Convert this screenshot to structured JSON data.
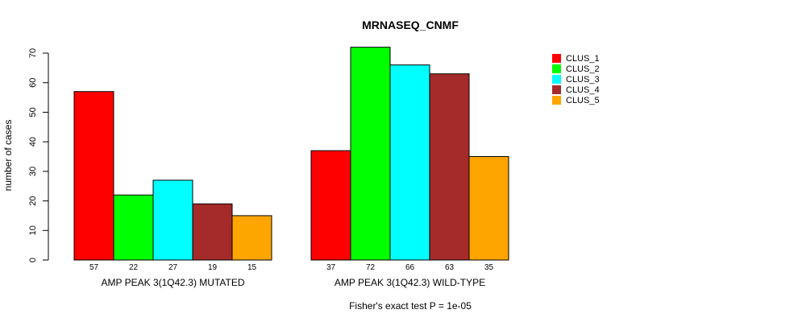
{
  "chart_data": {
    "type": "bar",
    "title": "MRNASEQ_CNMF",
    "ylabel": "number of cases",
    "ylim": [
      0,
      70
    ],
    "yticks": [
      0,
      10,
      20,
      30,
      40,
      50,
      60,
      70
    ],
    "groups": [
      {
        "label": "AMP PEAK  3(1Q42.3) MUTATED",
        "values": [
          57,
          22,
          27,
          19,
          15
        ],
        "value_labels": [
          "57",
          "22",
          "27",
          "19",
          "15"
        ]
      },
      {
        "label": "AMP PEAK  3(1Q42.3) WILD-TYPE",
        "values": [
          37,
          72,
          66,
          63,
          35
        ],
        "value_labels": [
          "37",
          "72",
          "66",
          "63",
          "35"
        ]
      }
    ],
    "series": [
      {
        "name": "CLUS_1",
        "color": "#ff0000"
      },
      {
        "name": "CLUS_2",
        "color": "#00ff00"
      },
      {
        "name": "CLUS_3",
        "color": "#00ffff"
      },
      {
        "name": "CLUS_4",
        "color": "#a52a2a"
      },
      {
        "name": "CLUS_5",
        "color": "#ffa500"
      }
    ],
    "legend_position": "top-right",
    "footnote": "Fisher's exact test P = 1e-05",
    "grid": false
  }
}
